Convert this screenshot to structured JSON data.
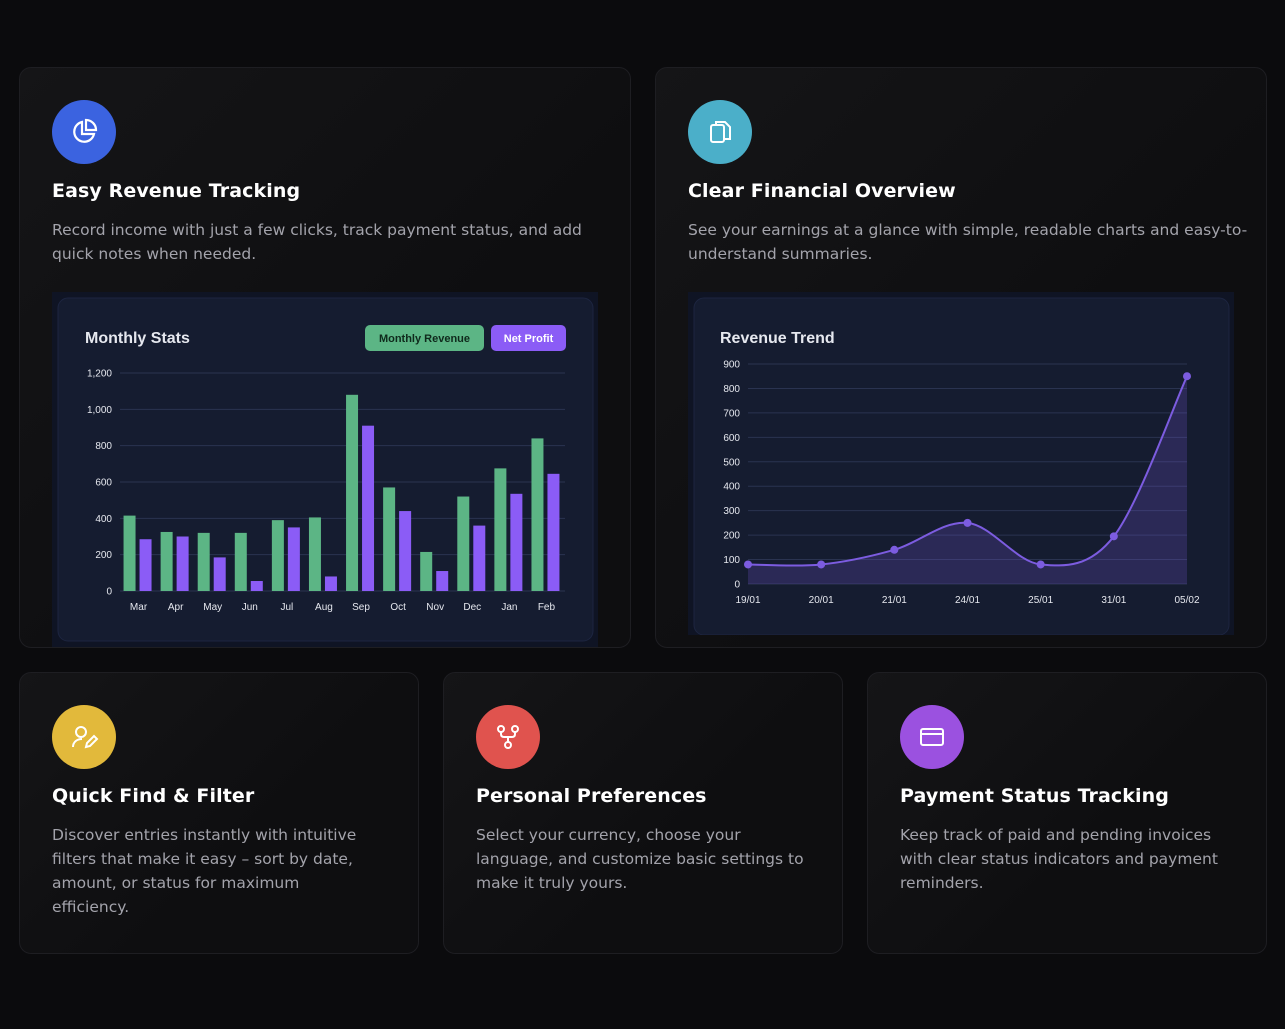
{
  "cards": [
    {
      "title": "Easy Revenue Tracking",
      "text": "Record income with just a few clicks, track payment status, and add quick notes when needed."
    },
    {
      "title": "Clear Financial Overview",
      "text": "See your earnings at a glance with simple, readable charts and easy-to-understand summaries."
    },
    {
      "title": "Quick Find & Filter",
      "text": "Discover entries instantly with intuitive filters that make it easy – sort by date, amount, or status for maximum efficiency."
    },
    {
      "title": "Personal Preferences",
      "text": "Select your currency, choose your language, and customize basic settings to make it truly yours."
    },
    {
      "title": "Payment Status Tracking",
      "text": "Keep track of paid and pending invoices with clear status indicators and payment reminders."
    }
  ],
  "chart_data": [
    {
      "type": "bar",
      "title": "Monthly Stats",
      "categories": [
        "Mar",
        "Apr",
        "May",
        "Jun",
        "Jul",
        "Aug",
        "Sep",
        "Oct",
        "Nov",
        "Dec",
        "Jan",
        "Feb"
      ],
      "series": [
        {
          "name": "Monthly Revenue",
          "color": "#5cb585",
          "values": [
            415,
            325,
            320,
            320,
            390,
            405,
            1080,
            570,
            215,
            520,
            675,
            840
          ]
        },
        {
          "name": "Net Profit",
          "color": "#8b5cf6",
          "values": [
            285,
            300,
            185,
            55,
            350,
            80,
            910,
            440,
            110,
            360,
            535,
            645
          ]
        }
      ],
      "ylim": [
        0,
        1200
      ],
      "yticks": [
        0,
        200,
        400,
        600,
        800,
        {
          "value": 1000,
          "label": "1,000"
        },
        {
          "value": 1200,
          "label": "1,200"
        }
      ],
      "grid": true
    },
    {
      "type": "line",
      "title": "Revenue Trend",
      "categories": [
        "19/01",
        "20/01",
        "21/01",
        "24/01",
        "25/01",
        "31/01",
        "05/02"
      ],
      "series": [
        {
          "name": "Revenue",
          "color": "#7c5ce0",
          "values": [
            80,
            80,
            140,
            250,
            80,
            195,
            850
          ]
        }
      ],
      "ylim": [
        0,
        900
      ],
      "yticks": [
        0,
        100,
        200,
        300,
        400,
        500,
        600,
        700,
        800,
        900
      ],
      "grid": true
    }
  ]
}
